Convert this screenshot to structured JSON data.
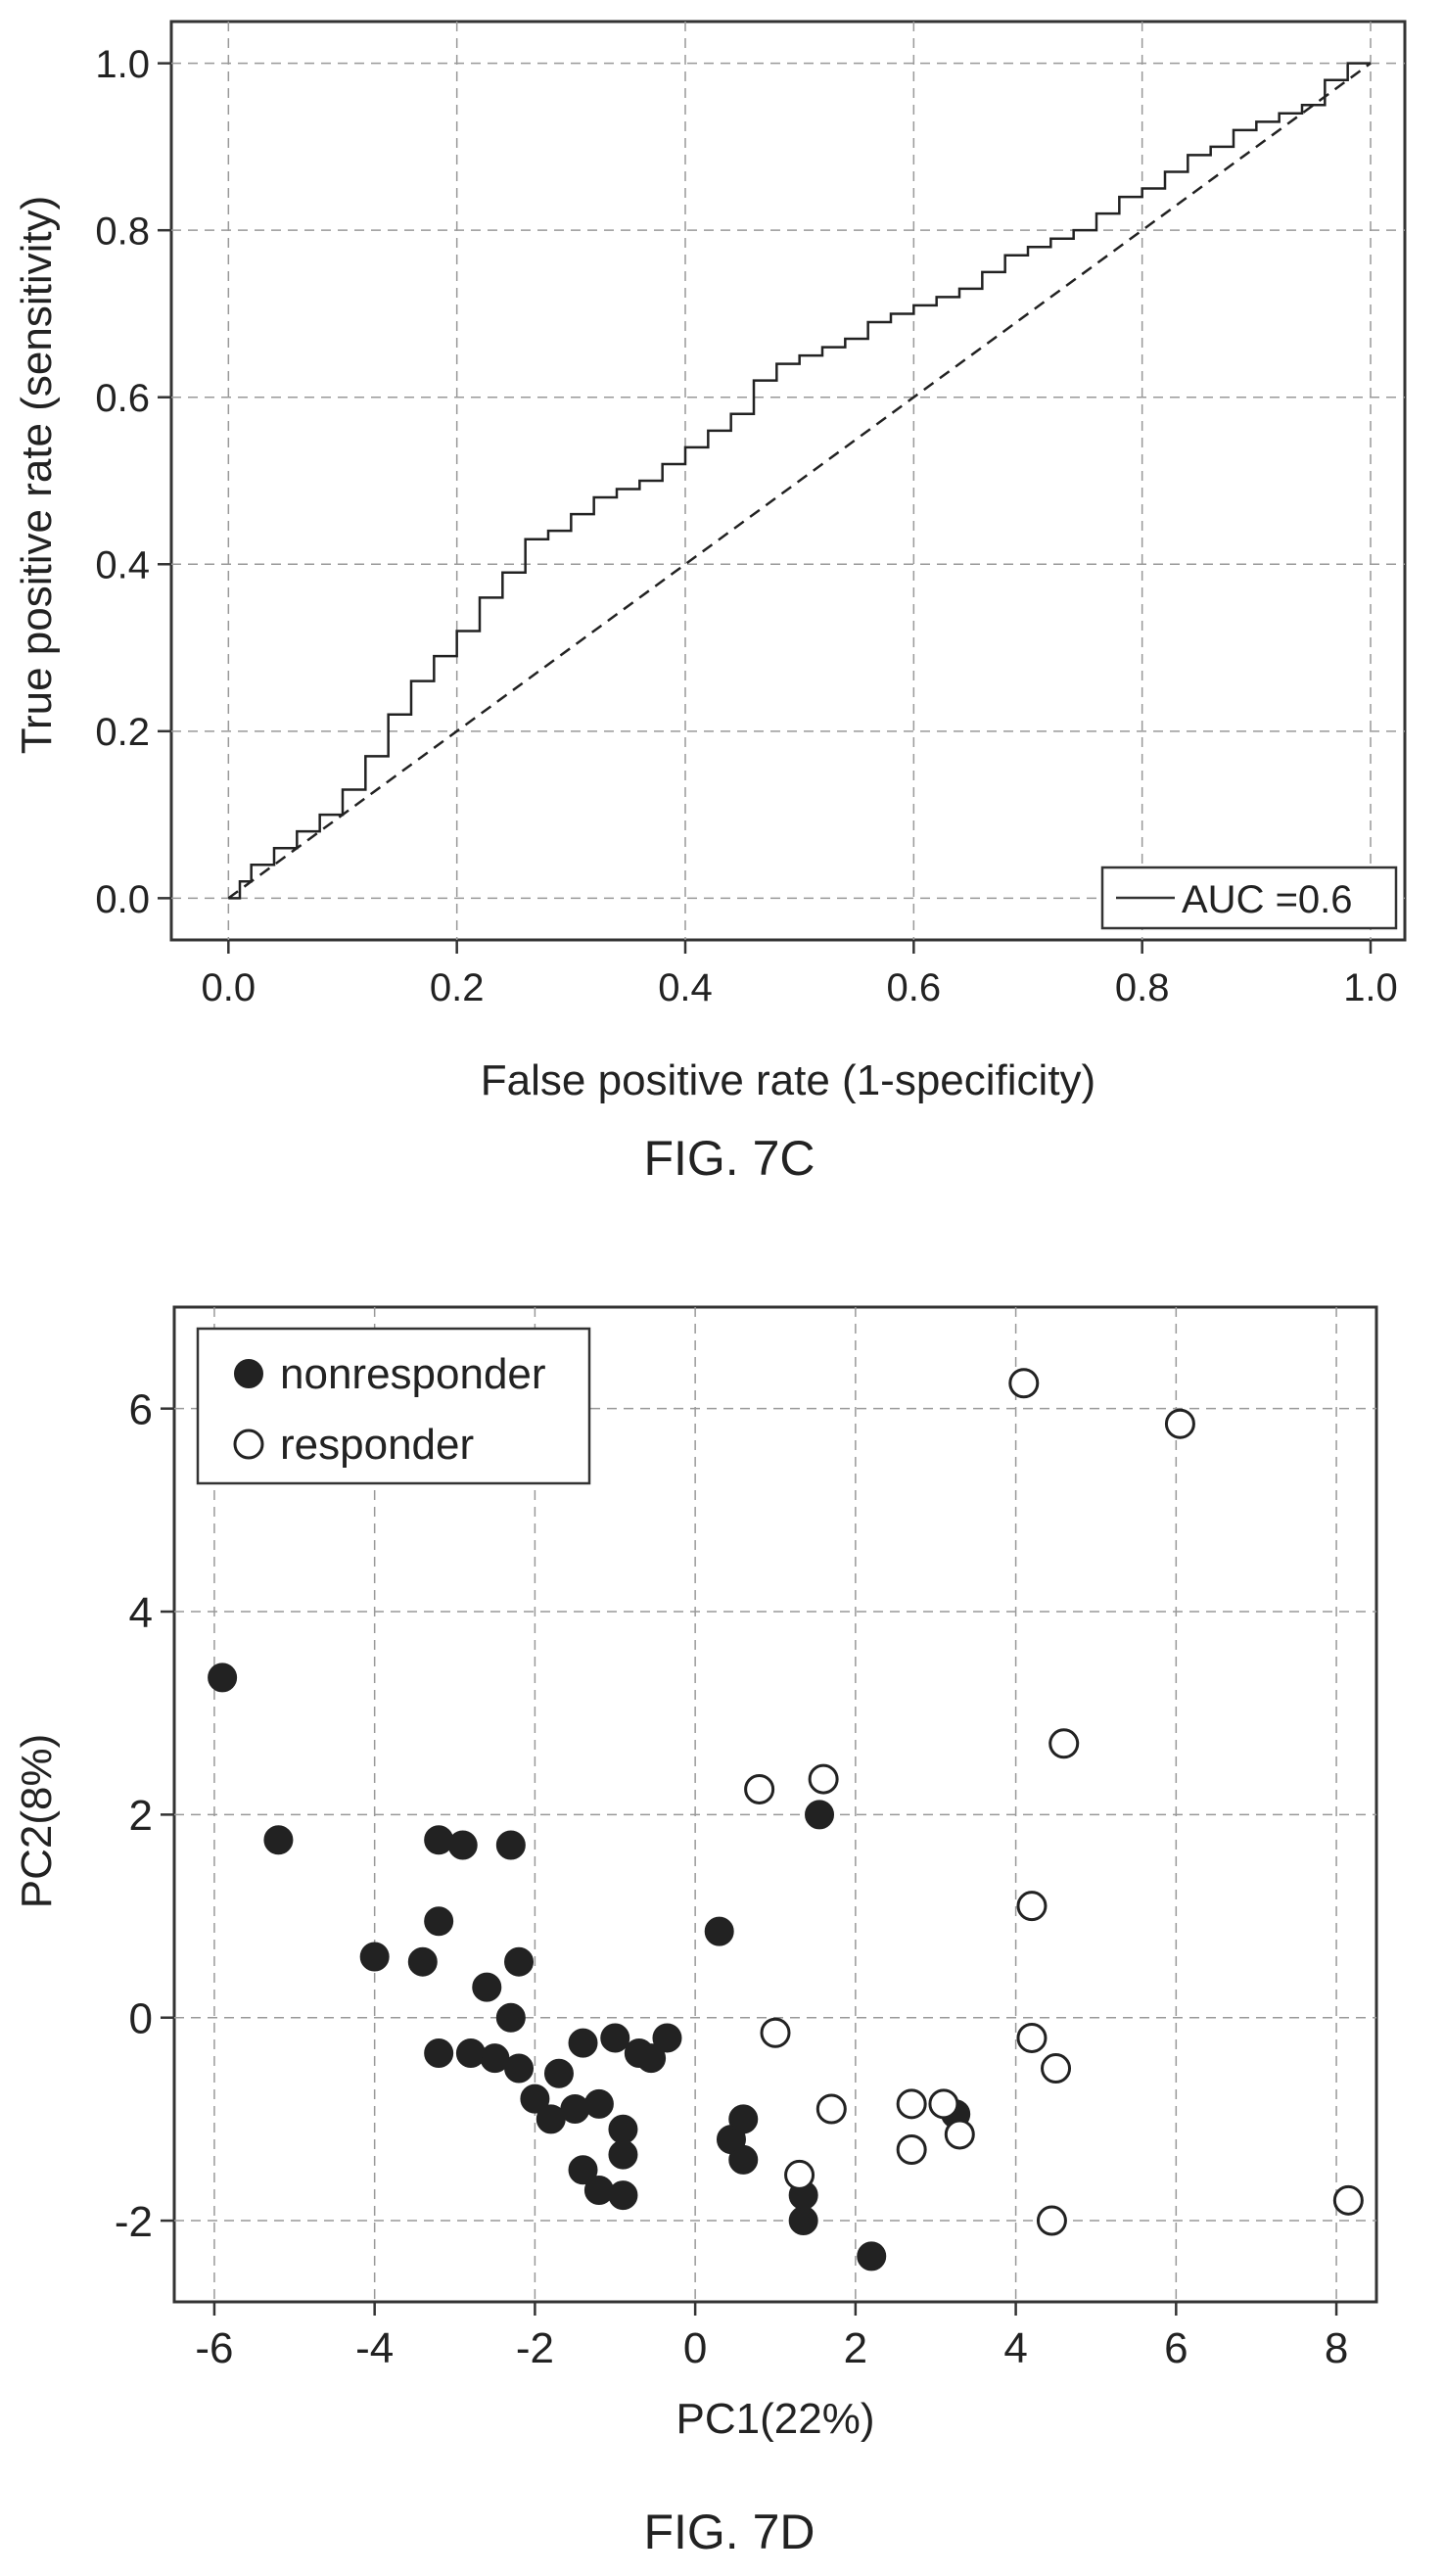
{
  "chart_data": [
    {
      "type": "line",
      "caption": "FIG. 7C",
      "xlabel": "False positive rate (1-specificity)",
      "ylabel": "True positive rate (sensitivity)",
      "xlim": [
        -0.05,
        1.03
      ],
      "ylim": [
        -0.05,
        1.05
      ],
      "xticks": [
        "0.0",
        "0.2",
        "0.4",
        "0.6",
        "0.8",
        "1.0"
      ],
      "yticks": [
        "0.0",
        "0.2",
        "0.4",
        "0.6",
        "0.8",
        "1.0"
      ],
      "grid": true,
      "legend": {
        "position": "bottom-right",
        "entries": [
          "AUC =0.6"
        ]
      },
      "series": [
        {
          "name": "AUC =0.6",
          "style": "solid",
          "x": [
            0.0,
            0.01,
            0.02,
            0.04,
            0.06,
            0.08,
            0.1,
            0.12,
            0.14,
            0.16,
            0.18,
            0.2,
            0.22,
            0.24,
            0.26,
            0.28,
            0.3,
            0.32,
            0.34,
            0.36,
            0.38,
            0.4,
            0.42,
            0.44,
            0.46,
            0.48,
            0.5,
            0.52,
            0.54,
            0.56,
            0.58,
            0.6,
            0.62,
            0.64,
            0.66,
            0.68,
            0.7,
            0.72,
            0.74,
            0.76,
            0.78,
            0.8,
            0.82,
            0.84,
            0.86,
            0.88,
            0.9,
            0.92,
            0.94,
            0.96,
            0.98
          ],
          "y": [
            0.0,
            0.02,
            0.04,
            0.06,
            0.08,
            0.1,
            0.13,
            0.17,
            0.22,
            0.26,
            0.29,
            0.32,
            0.36,
            0.39,
            0.43,
            0.44,
            0.46,
            0.48,
            0.49,
            0.5,
            0.52,
            0.54,
            0.56,
            0.58,
            0.62,
            0.64,
            0.65,
            0.66,
            0.67,
            0.69,
            0.7,
            0.71,
            0.72,
            0.73,
            0.75,
            0.77,
            0.78,
            0.79,
            0.8,
            0.82,
            0.84,
            0.85,
            0.87,
            0.89,
            0.9,
            0.92,
            0.93,
            0.94,
            0.95,
            0.98,
            1.0
          ]
        },
        {
          "name": "",
          "style": "dashed",
          "x": [
            0.0,
            1.0
          ],
          "y": [
            0.0,
            1.0
          ]
        }
      ]
    },
    {
      "type": "scatter",
      "caption": "FIG. 7D",
      "xlabel": "PC1(22%)",
      "ylabel": "PC2(8%)",
      "xlim": [
        -6.5,
        8.5
      ],
      "ylim": [
        -2.8,
        7.0
      ],
      "xticks": [
        "-6",
        "-4",
        "-2",
        "0",
        "2",
        "4",
        "6",
        "8"
      ],
      "yticks": [
        "-2",
        "0",
        "2",
        "4",
        "6"
      ],
      "grid": true,
      "legend": {
        "position": "top-left",
        "entries": [
          "nonresponder",
          "responder"
        ]
      },
      "series": [
        {
          "name": "nonresponder",
          "marker": "filled-circle",
          "points": [
            [
              -5.9,
              3.35
            ],
            [
              -5.2,
              1.75
            ],
            [
              -4.0,
              0.6
            ],
            [
              -3.4,
              0.55
            ],
            [
              -3.2,
              1.75
            ],
            [
              -3.2,
              0.95
            ],
            [
              -3.2,
              -0.35
            ],
            [
              -2.9,
              1.7
            ],
            [
              -2.8,
              -0.35
            ],
            [
              -2.6,
              0.3
            ],
            [
              -2.5,
              -0.4
            ],
            [
              -2.3,
              1.7
            ],
            [
              -2.3,
              0.0
            ],
            [
              -2.2,
              0.55
            ],
            [
              -2.2,
              -0.5
            ],
            [
              -2.0,
              -0.8
            ],
            [
              -1.8,
              -1.0
            ],
            [
              -1.7,
              -0.55
            ],
            [
              -1.5,
              -0.9
            ],
            [
              -1.4,
              -0.25
            ],
            [
              -1.4,
              -1.5
            ],
            [
              -1.2,
              -0.85
            ],
            [
              -1.2,
              -1.7
            ],
            [
              -1.0,
              -0.2
            ],
            [
              -0.9,
              -1.1
            ],
            [
              -0.9,
              -1.35
            ],
            [
              -0.9,
              -1.75
            ],
            [
              -0.7,
              -0.35
            ],
            [
              -0.55,
              -0.4
            ],
            [
              -0.35,
              -0.2
            ],
            [
              0.3,
              0.85
            ],
            [
              0.45,
              -1.2
            ],
            [
              0.6,
              -1.0
            ],
            [
              0.6,
              -1.4
            ],
            [
              1.35,
              -1.75
            ],
            [
              1.35,
              -2.0
            ],
            [
              1.55,
              2.0
            ],
            [
              2.2,
              -2.35
            ],
            [
              3.25,
              -0.95
            ]
          ]
        },
        {
          "name": "responder",
          "marker": "open-circle",
          "points": [
            [
              0.8,
              2.25
            ],
            [
              1.0,
              -0.15
            ],
            [
              1.3,
              -1.55
            ],
            [
              1.6,
              2.35
            ],
            [
              1.7,
              -0.9
            ],
            [
              2.7,
              -0.85
            ],
            [
              2.7,
              -1.3
            ],
            [
              3.1,
              -0.85
            ],
            [
              3.3,
              -1.15
            ],
            [
              4.1,
              6.25
            ],
            [
              4.2,
              1.1
            ],
            [
              4.2,
              -0.2
            ],
            [
              4.45,
              -2.0
            ],
            [
              4.5,
              -0.5
            ],
            [
              4.6,
              2.7
            ],
            [
              6.05,
              5.85
            ],
            [
              8.15,
              -1.8
            ]
          ]
        }
      ]
    }
  ]
}
